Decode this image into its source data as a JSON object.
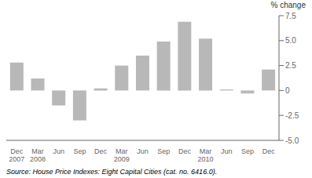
{
  "chart_data": {
    "type": "bar",
    "y_label": "% change",
    "categories": [
      "Dec\n2007",
      "Mar\n2008",
      "Jun",
      "Sep",
      "Dec",
      "Mar\n2009",
      "Jun",
      "Sep",
      "Dec",
      "Mar\n2010",
      "Jun",
      "Sep",
      "Dec"
    ],
    "values": [
      2.8,
      1.2,
      -1.5,
      -3.0,
      0.2,
      2.5,
      3.5,
      4.9,
      6.9,
      5.2,
      0.1,
      -0.3,
      2.1
    ],
    "color": "#b8b8b8",
    "ylim": [
      -5.0,
      7.5
    ],
    "yticks": [
      {
        "value": -5.0,
        "label": "-5.0"
      },
      -2.5,
      0,
      2.5,
      {
        "value": 5.0,
        "label": "5.0"
      },
      7.5
    ],
    "grid": false,
    "annotations": [
      "Source: House Price Indexes: Eight Capital Cities (cat.  no.  6416.0)."
    ]
  }
}
